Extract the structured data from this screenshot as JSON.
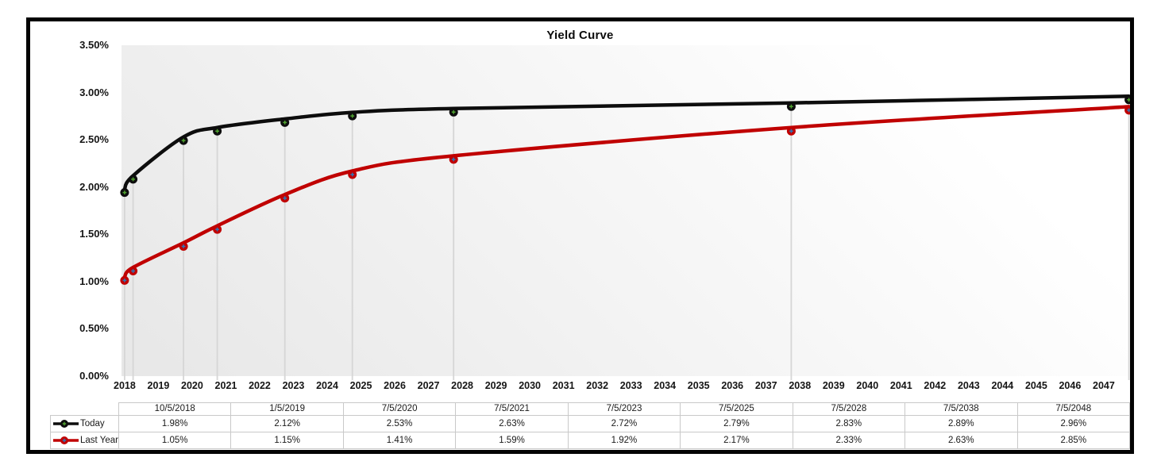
{
  "chart_data": {
    "type": "line",
    "title": "Yield Curve",
    "legend_position": "table-left",
    "grid": "vertical drop lines at data points only",
    "y_axis": {
      "min": 0,
      "max": 3.5,
      "step": 0.5,
      "tick_labels": [
        "3.50%",
        "3.00%",
        "2.50%",
        "2.00%",
        "1.50%",
        "1.00%",
        "0.50%",
        "0.00%"
      ]
    },
    "x_axis": {
      "range_years": [
        2018.67,
        2048.54
      ],
      "tick_labels": [
        "2018",
        "2019",
        "2020",
        "2021",
        "2022",
        "2023",
        "2024",
        "2025",
        "2026",
        "2027",
        "2028",
        "2029",
        "2030",
        "2031",
        "2032",
        "2033",
        "2034",
        "2035",
        "2036",
        "2037",
        "2038",
        "2039",
        "2040",
        "2041",
        "2042",
        "2043",
        "2044",
        "2045",
        "2046",
        "2047"
      ]
    },
    "points": {
      "dates": [
        "10/5/2018",
        "1/5/2019",
        "7/5/2020",
        "7/5/2021",
        "7/5/2023",
        "7/5/2025",
        "7/5/2028",
        "7/5/2038",
        "7/5/2048"
      ],
      "years": [
        2018.762,
        2019.014,
        2020.507,
        2021.507,
        2023.507,
        2025.507,
        2028.507,
        2038.507,
        2048.507
      ]
    },
    "series": [
      {
        "name": "Today",
        "color": "#0d0d0d",
        "marker_cross_color": "#4fa22f",
        "values": [
          1.98,
          2.12,
          2.53,
          2.63,
          2.72,
          2.79,
          2.83,
          2.89,
          2.96
        ],
        "display_values": [
          "1.98%",
          "2.12%",
          "2.53%",
          "2.63%",
          "2.72%",
          "2.79%",
          "2.83%",
          "2.89%",
          "2.96%"
        ]
      },
      {
        "name": "Last Year",
        "color": "#c00000",
        "marker_cross_color": "#2e75b6",
        "values": [
          1.05,
          1.15,
          1.41,
          1.59,
          1.92,
          2.17,
          2.33,
          2.63,
          2.85
        ],
        "display_values": [
          "1.05%",
          "1.15%",
          "1.41%",
          "1.59%",
          "1.92%",
          "2.17%",
          "2.33%",
          "2.63%",
          "2.85%"
        ]
      }
    ],
    "dropline_color": "#d6d6d6"
  },
  "table": {
    "column_headers": [
      "10/5/2018",
      "1/5/2019",
      "7/5/2020",
      "7/5/2021",
      "7/5/2023",
      "7/5/2025",
      "7/5/2028",
      "7/5/2038",
      "7/5/2048"
    ],
    "rows": [
      {
        "label": "Today",
        "values": [
          "1.98%",
          "2.12%",
          "2.53%",
          "2.63%",
          "2.72%",
          "2.79%",
          "2.83%",
          "2.89%",
          "2.96%"
        ]
      },
      {
        "label": "Last Year",
        "values": [
          "1.05%",
          "1.15%",
          "1.41%",
          "1.59%",
          "1.92%",
          "2.17%",
          "2.33%",
          "2.63%",
          "2.85%"
        ]
      }
    ]
  }
}
